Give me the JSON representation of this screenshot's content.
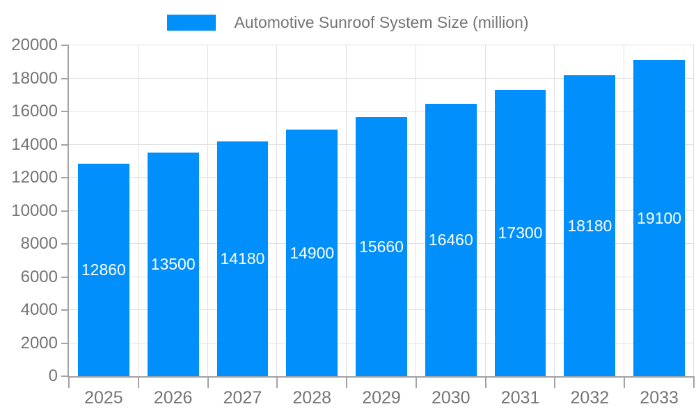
{
  "legend": {
    "label": "Automotive Sunroof System Size (million)"
  },
  "colors": {
    "bar": "#008FFB",
    "grid": "#e0e0e0",
    "axis": "#a3a3a3",
    "axis_label": "#757575",
    "bar_label": "#ffffff",
    "background": "#ffffff"
  },
  "chart_data": {
    "type": "bar",
    "title": "",
    "legend_position": "top",
    "categories": [
      "2025",
      "2026",
      "2027",
      "2028",
      "2029",
      "2030",
      "2031",
      "2032",
      "2033"
    ],
    "series": [
      {
        "name": "Automotive Sunroof System Size (million)",
        "color": "#008FFB",
        "values": [
          12860,
          13500,
          14180,
          14900,
          15660,
          16460,
          17300,
          18180,
          19100
        ],
        "labels": [
          "12860",
          "13500",
          "14180",
          "14900",
          "15660",
          "16460",
          "17300",
          "18180",
          "19100"
        ]
      }
    ],
    "xlabel": "",
    "ylabel": "",
    "ylim": [
      0,
      20000
    ],
    "y_ticks": [
      0,
      2000,
      4000,
      6000,
      8000,
      10000,
      12000,
      14000,
      16000,
      18000,
      20000
    ],
    "y_tick_labels": [
      "0",
      "2000",
      "4000",
      "6000",
      "8000",
      "10000",
      "12000",
      "14000",
      "16000",
      "18000",
      "20000"
    ],
    "grid": {
      "horizontal": true,
      "vertical": true
    },
    "data_labels": "inside-center-white",
    "bar_width_fraction": 0.74
  }
}
